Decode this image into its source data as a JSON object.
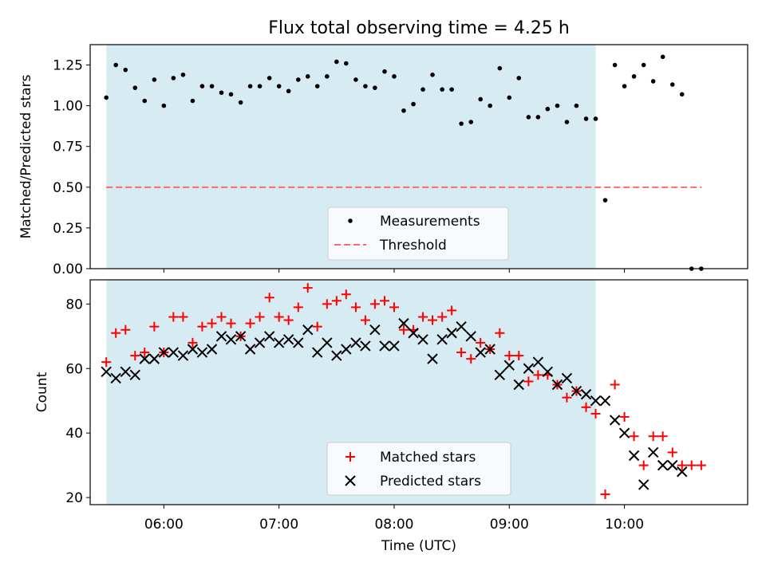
{
  "chart_data": {
    "title": "Flux total observing time = 4.25 h",
    "xlabel": "Time (UTC)",
    "x_ticks": [
      "06:00",
      "07:00",
      "08:00",
      "09:00",
      "10:00"
    ],
    "x_tick_hours": [
      6,
      7,
      8,
      9,
      10
    ],
    "xlim": [
      5.36,
      11.07
    ],
    "shaded_span": [
      5.5,
      9.75
    ],
    "colors": {
      "shade": "#add8e6",
      "measurement": "#000000",
      "threshold": "#ff6666",
      "matched": "#ff0000",
      "predicted": "#000000"
    },
    "panels": [
      {
        "type": "scatter",
        "ylabel": "Matched/Predicted stars",
        "ylim": [
          0,
          1.375
        ],
        "y_ticks": [
          "0.00",
          "0.25",
          "0.50",
          "0.75",
          "1.00",
          "1.25"
        ],
        "y_tick_values": [
          0,
          0.25,
          0.5,
          0.75,
          1.0,
          1.25
        ],
        "legend": [
          "Measurements",
          "Threshold"
        ],
        "threshold": {
          "value": 0.5,
          "x_range": [
            5.5,
            10.67
          ]
        },
        "series": [
          {
            "name": "Measurements",
            "x": [
              5.5,
              5.583,
              5.667,
              5.75,
              5.833,
              5.917,
              6.0,
              6.083,
              6.167,
              6.25,
              6.333,
              6.417,
              6.5,
              6.583,
              6.667,
              6.75,
              6.833,
              6.917,
              7.0,
              7.083,
              7.167,
              7.25,
              7.333,
              7.417,
              7.5,
              7.583,
              7.667,
              7.75,
              7.833,
              7.917,
              8.0,
              8.083,
              8.167,
              8.25,
              8.333,
              8.417,
              8.5,
              8.583,
              8.667,
              8.75,
              8.833,
              8.917,
              9.0,
              9.083,
              9.167,
              9.25,
              9.333,
              9.417,
              9.5,
              9.583,
              9.667,
              9.75,
              9.833,
              9.917,
              10.0,
              10.083,
              10.167,
              10.25,
              10.333,
              10.417,
              10.5,
              10.583,
              10.667
            ],
            "y": [
              1.05,
              1.25,
              1.22,
              1.11,
              1.03,
              1.16,
              1.0,
              1.17,
              1.19,
              1.03,
              1.12,
              1.12,
              1.08,
              1.07,
              1.02,
              1.12,
              1.12,
              1.17,
              1.12,
              1.09,
              1.16,
              1.18,
              1.12,
              1.18,
              1.27,
              1.26,
              1.16,
              1.12,
              1.11,
              1.21,
              1.18,
              0.97,
              1.01,
              1.1,
              1.19,
              1.1,
              1.1,
              0.89,
              0.9,
              1.04,
              1.0,
              1.23,
              1.05,
              1.17,
              0.93,
              0.93,
              0.98,
              1.0,
              0.9,
              1.0,
              0.92,
              0.92,
              0.42,
              1.25,
              1.12,
              1.18,
              1.25,
              1.15,
              1.3,
              1.13,
              1.07,
              0.0,
              0.0
            ]
          }
        ]
      },
      {
        "type": "scatter",
        "ylabel": "Count",
        "ylim": [
          17.8,
          87.5
        ],
        "y_ticks": [
          "20",
          "40",
          "60",
          "80"
        ],
        "y_tick_values": [
          20,
          40,
          60,
          80
        ],
        "legend": [
          "Matched stars",
          "Predicted stars"
        ],
        "series": [
          {
            "name": "Matched stars",
            "x": [
              5.5,
              5.583,
              5.667,
              5.75,
              5.833,
              5.917,
              6.0,
              6.083,
              6.167,
              6.25,
              6.333,
              6.417,
              6.5,
              6.583,
              6.667,
              6.75,
              6.833,
              6.917,
              7.0,
              7.083,
              7.167,
              7.25,
              7.333,
              7.417,
              7.5,
              7.583,
              7.667,
              7.75,
              7.833,
              7.917,
              8.0,
              8.083,
              8.167,
              8.25,
              8.333,
              8.417,
              8.5,
              8.583,
              8.667,
              8.75,
              8.833,
              8.917,
              9.0,
              9.083,
              9.167,
              9.25,
              9.333,
              9.417,
              9.5,
              9.583,
              9.667,
              9.75,
              9.833,
              9.917,
              10.0,
              10.083,
              10.167,
              10.25,
              10.333,
              10.417,
              10.5,
              10.583,
              10.667
            ],
            "y": [
              62,
              71,
              72,
              64,
              65,
              73,
              65,
              76,
              76,
              68,
              73,
              74,
              76,
              74,
              70,
              74,
              76,
              82,
              76,
              75,
              79,
              85,
              73,
              80,
              81,
              83,
              79,
              75,
              80,
              81,
              79,
              72,
              72,
              76,
              75,
              76,
              78,
              65,
              63,
              68,
              66,
              71,
              64,
              64,
              56,
              58,
              58,
              55,
              51,
              53,
              48,
              46,
              21,
              55,
              45,
              39,
              30,
              39,
              39,
              34,
              30,
              30,
              30
            ]
          },
          {
            "name": "Predicted stars",
            "x": [
              5.5,
              5.583,
              5.667,
              5.75,
              5.833,
              5.917,
              6.0,
              6.083,
              6.167,
              6.25,
              6.333,
              6.417,
              6.5,
              6.583,
              6.667,
              6.75,
              6.833,
              6.917,
              7.0,
              7.083,
              7.167,
              7.25,
              7.333,
              7.417,
              7.5,
              7.583,
              7.667,
              7.75,
              7.833,
              7.917,
              8.0,
              8.083,
              8.167,
              8.25,
              8.333,
              8.417,
              8.5,
              8.583,
              8.667,
              8.75,
              8.833,
              8.917,
              9.0,
              9.083,
              9.167,
              9.25,
              9.333,
              9.417,
              9.5,
              9.583,
              9.667,
              9.75,
              9.833,
              9.917,
              10.0,
              10.083,
              10.167,
              10.25,
              10.333,
              10.417,
              10.5
            ],
            "y": [
              59,
              57,
              59,
              58,
              63,
              63,
              65,
              65,
              64,
              66,
              65,
              66,
              70,
              69,
              70,
              66,
              68,
              70,
              68,
              69,
              68,
              72,
              65,
              68,
              64,
              66,
              68,
              67,
              72,
              67,
              67,
              74,
              71,
              69,
              63,
              69,
              71,
              73,
              70,
              65,
              66,
              58,
              61,
              55,
              60,
              62,
              59,
              55,
              57,
              53,
              52,
              50,
              50,
              44,
              40,
              33,
              24,
              34,
              30,
              30,
              28
            ]
          }
        ]
      }
    ]
  }
}
